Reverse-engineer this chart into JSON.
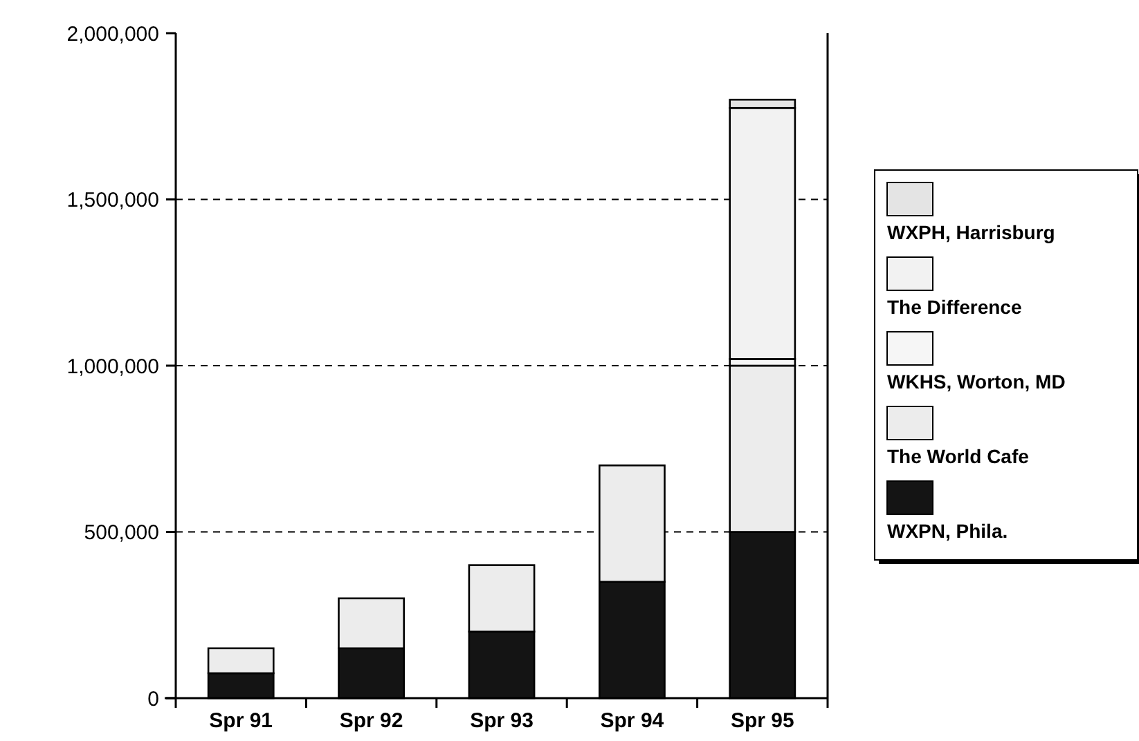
{
  "chart_data": {
    "type": "bar",
    "stacked": true,
    "categories": [
      "Spr 91",
      "Spr 92",
      "Spr 93",
      "Spr 94",
      "Spr 95"
    ],
    "series": [
      {
        "name": "WXPN, Phila.",
        "color": "#141414",
        "values": [
          75000,
          150000,
          200000,
          350000,
          500000
        ]
      },
      {
        "name": "The World Cafe",
        "color": "#ececec",
        "values": [
          75000,
          150000,
          200000,
          350000,
          500000
        ]
      },
      {
        "name": "WKHS, Worton, MD",
        "color": "#f6f6f6",
        "values": [
          null,
          null,
          null,
          null,
          20000
        ]
      },
      {
        "name": "The Difference",
        "color": "#f2f2f2",
        "values": [
          null,
          null,
          null,
          null,
          755000
        ]
      },
      {
        "name": "WXPH, Harrisburg",
        "color": "#e4e4e4",
        "values": [
          null,
          null,
          null,
          null,
          25000
        ]
      }
    ],
    "ylim": [
      0,
      2000000
    ],
    "yticks": [
      {
        "value": 0,
        "label": "0"
      },
      {
        "value": 500000,
        "label": "500,000"
      },
      {
        "value": 1000000,
        "label": "1,000,000"
      },
      {
        "value": 1500000,
        "label": "1,500,000"
      },
      {
        "value": 2000000,
        "label": "2,000,000"
      }
    ],
    "grid": "y",
    "legend": "right"
  }
}
